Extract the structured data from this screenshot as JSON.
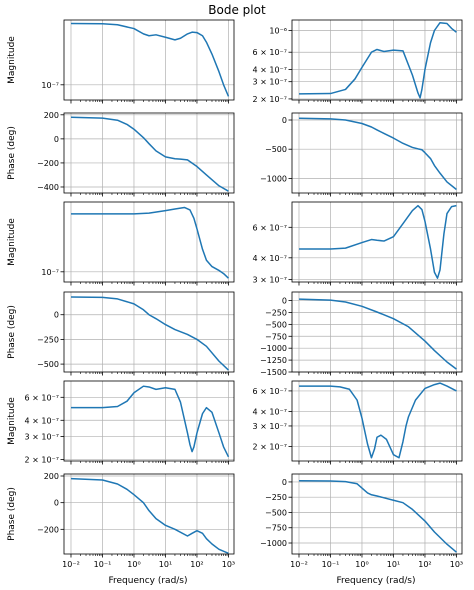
{
  "title": "Bode plot",
  "xlabel": "Frequency (rad/s)",
  "colors": {
    "line": "#1f77b4",
    "grid": "#b0b0b0",
    "axis": "#000000"
  },
  "chart_data": [
    {
      "type": "line",
      "row": 0,
      "col": 0,
      "kind": "magnitude",
      "ylabel": "Magnitude",
      "yscale": "log",
      "xscale": "log",
      "xlim": [
        0.006,
        1500
      ],
      "ylim": [
        5.8e-08,
        1.02e-06
      ],
      "yticks": [
        {
          "v": 1e-07,
          "label": "10⁻⁷"
        }
      ],
      "x": [
        0.01,
        0.1,
        0.3,
        1,
        2,
        3,
        5,
        10,
        20,
        30,
        50,
        70,
        100,
        150,
        200,
        300,
        500,
        700,
        1000
      ],
      "y": [
        9e-07,
        8.9e-07,
        8.6e-07,
        7.5e-07,
        6.2e-07,
        5.8e-07,
        6e-07,
        5.5e-07,
        5e-07,
        5.3e-07,
        6.2e-07,
        6.6e-07,
        6.5e-07,
        5.8e-07,
        4.6e-07,
        3e-07,
        1.6e-07,
        1e-07,
        6.6e-08
      ],
      "grid": true
    },
    {
      "type": "line",
      "row": 0,
      "col": 1,
      "kind": "magnitude",
      "yscale": "log",
      "xscale": "log",
      "xlim": [
        0.006,
        1500
      ],
      "ylim": [
        1.95e-07,
        1.28e-06
      ],
      "yticks": [
        {
          "v": 2e-07,
          "label": "2 × 10⁻⁷"
        },
        {
          "v": 3e-07,
          "label": "3 × 10⁻⁷"
        },
        {
          "v": 4e-07,
          "label": "4 × 10⁻⁷"
        },
        {
          "v": 6e-07,
          "label": "6 × 10⁻⁷"
        },
        {
          "v": 1e-06,
          "label": "10⁻⁶"
        }
      ],
      "x": [
        0.01,
        0.1,
        0.3,
        0.6,
        1,
        2,
        3,
        5,
        10,
        20,
        40,
        60,
        70,
        80,
        100,
        150,
        200,
        300,
        500,
        700,
        1000
      ],
      "y": [
        2.25e-07,
        2.27e-07,
        2.5e-07,
        3.2e-07,
        4.2e-07,
        6e-07,
        6.4e-07,
        6.1e-07,
        6.3e-07,
        6.2e-07,
        3.5e-07,
        2.3e-07,
        2.05e-07,
        2.5e-07,
        4e-07,
        7.5e-07,
        1e-06,
        1.2e-06,
        1.18e-06,
        1.05e-06,
        9.6e-07
      ],
      "grid": true
    },
    {
      "type": "line",
      "row": 1,
      "col": 0,
      "kind": "phase",
      "ylabel": "Phase (deg)",
      "yscale": "linear",
      "xscale": "log",
      "xlim": [
        0.006,
        1500
      ],
      "ylim": [
        -450,
        215
      ],
      "yticks": [
        {
          "v": 200,
          "label": "200"
        },
        {
          "v": 0,
          "label": "0"
        },
        {
          "v": -200,
          "label": "−200"
        },
        {
          "v": -400,
          "label": "−400"
        }
      ],
      "x": [
        0.01,
        0.1,
        0.3,
        0.6,
        1,
        2,
        3,
        5,
        10,
        20,
        30,
        50,
        100,
        200,
        500,
        1000
      ],
      "y": [
        180,
        172,
        155,
        120,
        80,
        10,
        -40,
        -100,
        -150,
        -165,
        -168,
        -175,
        -230,
        -300,
        -390,
        -435
      ],
      "grid": true
    },
    {
      "type": "line",
      "row": 1,
      "col": 1,
      "kind": "phase",
      "yscale": "linear",
      "xscale": "log",
      "xlim": [
        0.006,
        1500
      ],
      "ylim": [
        -1250,
        120
      ],
      "yticks": [
        {
          "v": 0,
          "label": "0"
        },
        {
          "v": -500,
          "label": "−500"
        },
        {
          "v": -1000,
          "label": "−1000"
        }
      ],
      "x": [
        0.01,
        0.1,
        0.3,
        1,
        2,
        3,
        5,
        10,
        20,
        40,
        60,
        80,
        100,
        150,
        200,
        300,
        500,
        1000
      ],
      "y": [
        30,
        20,
        0,
        -60,
        -120,
        -170,
        -230,
        -310,
        -400,
        -470,
        -495,
        -510,
        -560,
        -660,
        -780,
        -910,
        -1060,
        -1190
      ],
      "grid": true
    },
    {
      "type": "line",
      "row": 2,
      "col": 0,
      "kind": "magnitude",
      "ylabel": "Magnitude",
      "yscale": "log",
      "xscale": "log",
      "xlim": [
        0.006,
        1500
      ],
      "ylim": [
        7e-08,
        1.15e-06
      ],
      "yticks": [
        {
          "v": 1e-07,
          "label": "10⁻⁷"
        }
      ],
      "x": [
        0.01,
        0.1,
        1,
        3,
        10,
        20,
        40,
        60,
        80,
        100,
        150,
        200,
        300,
        500,
        700,
        1000
      ],
      "y": [
        7.6e-07,
        7.6e-07,
        7.6e-07,
        7.8e-07,
        8.5e-07,
        9e-07,
        9.5e-07,
        8.7e-07,
        6.5e-07,
        4.5e-07,
        2.2e-07,
        1.5e-07,
        1.2e-07,
        1.05e-07,
        9.4e-08,
        8e-08
      ],
      "grid": true
    },
    {
      "type": "line",
      "row": 2,
      "col": 1,
      "kind": "magnitude",
      "yscale": "log",
      "xscale": "log",
      "xlim": [
        0.006,
        1500
      ],
      "ylim": [
        2.9e-07,
        8.4e-07
      ],
      "yticks": [
        {
          "v": 3e-07,
          "label": "3 × 10⁻⁷"
        },
        {
          "v": 4e-07,
          "label": "4 × 10⁻⁷"
        },
        {
          "v": 6e-07,
          "label": "6 × 10⁻⁷"
        }
      ],
      "x": [
        0.01,
        0.1,
        0.3,
        1,
        2,
        3,
        5,
        10,
        20,
        40,
        60,
        80,
        100,
        150,
        200,
        250,
        300,
        400,
        500,
        700,
        1000
      ],
      "y": [
        4.5e-07,
        4.5e-07,
        4.55e-07,
        4.9e-07,
        5.1e-07,
        5.05e-07,
        5e-07,
        5.3e-07,
        6.3e-07,
        7.5e-07,
        8e-07,
        7.6e-07,
        6.5e-07,
        4.5e-07,
        3.3e-07,
        3.05e-07,
        3.4e-07,
        5.5e-07,
        7.2e-07,
        7.9e-07,
        8e-07
      ],
      "grid": true
    },
    {
      "type": "line",
      "row": 3,
      "col": 0,
      "kind": "phase",
      "ylabel": "Phase (deg)",
      "yscale": "linear",
      "xscale": "log",
      "xlim": [
        0.006,
        1500
      ],
      "ylim": [
        -580,
        230
      ],
      "yticks": [
        {
          "v": 0,
          "label": "0"
        },
        {
          "v": -250,
          "label": "−250"
        },
        {
          "v": -500,
          "label": "−500"
        }
      ],
      "x": [
        0.01,
        0.1,
        0.3,
        1,
        2,
        3,
        5,
        10,
        20,
        50,
        100,
        200,
        500,
        1000
      ],
      "y": [
        180,
        175,
        160,
        110,
        50,
        0,
        -40,
        -100,
        -150,
        -200,
        -250,
        -320,
        -470,
        -560
      ],
      "grid": true
    },
    {
      "type": "line",
      "row": 3,
      "col": 1,
      "kind": "phase",
      "yscale": "linear",
      "xscale": "log",
      "xlim": [
        0.006,
        1500
      ],
      "ylim": [
        -1500,
        180
      ],
      "yticks": [
        {
          "v": 0,
          "label": "0"
        },
        {
          "v": -250,
          "label": "−250"
        },
        {
          "v": -500,
          "label": "−500"
        },
        {
          "v": -750,
          "label": "−750"
        },
        {
          "v": -1000,
          "label": "−1000"
        },
        {
          "v": -1250,
          "label": "−1250"
        },
        {
          "v": -1500,
          "label": "−1500"
        }
      ],
      "x": [
        0.01,
        0.1,
        0.3,
        1,
        3,
        10,
        30,
        100,
        200,
        500,
        1000
      ],
      "y": [
        30,
        10,
        -30,
        -120,
        -240,
        -380,
        -550,
        -850,
        -1050,
        -1290,
        -1440
      ],
      "grid": true
    },
    {
      "type": "line",
      "row": 4,
      "col": 0,
      "kind": "magnitude",
      "ylabel": "Magnitude",
      "yscale": "log",
      "xscale": "log",
      "xlim": [
        0.006,
        1500
      ],
      "ylim": [
        1.95e-07,
        8e-07
      ],
      "yticks": [
        {
          "v": 2e-07,
          "label": "2 × 10⁻⁷"
        },
        {
          "v": 3e-07,
          "label": "3 × 10⁻⁷"
        },
        {
          "v": 4e-07,
          "label": "4 × 10⁻⁷"
        },
        {
          "v": 6e-07,
          "label": "6 × 10⁻⁷"
        }
      ],
      "x": [
        0.01,
        0.1,
        0.3,
        0.6,
        1,
        2,
        3,
        5,
        10,
        20,
        30,
        50,
        60,
        70,
        80,
        100,
        150,
        200,
        300,
        500,
        700,
        1000
      ],
      "y": [
        5e-07,
        5e-07,
        5.1e-07,
        5.6e-07,
        6.5e-07,
        7.3e-07,
        7.2e-07,
        6.9e-07,
        7.1e-07,
        6.9e-07,
        5.5e-07,
        3.2e-07,
        2.6e-07,
        2.3e-07,
        2.5e-07,
        3.2e-07,
        4.5e-07,
        5e-07,
        4.6e-07,
        3.2e-07,
        2.5e-07,
        2.1e-07
      ],
      "grid": true
    },
    {
      "type": "line",
      "row": 4,
      "col": 1,
      "kind": "magnitude",
      "yscale": "log",
      "xscale": "log",
      "xlim": [
        0.006,
        1500
      ],
      "ylim": [
        1.5e-07,
        7.3e-07
      ],
      "yticks": [
        {
          "v": 2e-07,
          "label": "2 × 10⁻⁷"
        },
        {
          "v": 3e-07,
          "label": "3 × 10⁻⁷"
        },
        {
          "v": 4e-07,
          "label": "4 × 10⁻⁷"
        },
        {
          "v": 6e-07,
          "label": "6 × 10⁻⁷"
        }
      ],
      "x": [
        0.01,
        0.1,
        0.2,
        0.4,
        0.7,
        1,
        1.5,
        2,
        2.5,
        3,
        4,
        6,
        10,
        15,
        20,
        25,
        30,
        50,
        100,
        200,
        300,
        500,
        1000
      ],
      "y": [
        6.6e-07,
        6.6e-07,
        6.5e-07,
        6.2e-07,
        5e-07,
        3.5e-07,
        2.1e-07,
        1.6e-07,
        1.9e-07,
        2.4e-07,
        2.5e-07,
        2.3e-07,
        1.7e-07,
        1.6e-07,
        2.2e-07,
        3e-07,
        3.6e-07,
        5e-07,
        6.3e-07,
        6.8e-07,
        7e-07,
        6.6e-07,
        6e-07
      ],
      "grid": true
    },
    {
      "type": "line",
      "row": 5,
      "col": 0,
      "kind": "phase",
      "ylabel": "Phase (deg)",
      "yscale": "linear",
      "xscale": "log",
      "xlim": [
        0.006,
        1500
      ],
      "ylim": [
        -385,
        215
      ],
      "yticks": [
        {
          "v": 200,
          "label": "200"
        },
        {
          "v": 0,
          "label": "0"
        },
        {
          "v": -200,
          "label": "−200"
        }
      ],
      "x": [
        0.01,
        0.1,
        0.3,
        0.6,
        1,
        2,
        3,
        5,
        10,
        20,
        50,
        70,
        100,
        150,
        200,
        300,
        500,
        1000
      ],
      "y": [
        180,
        170,
        140,
        100,
        60,
        0,
        -60,
        -120,
        -170,
        -200,
        -250,
        -230,
        -210,
        -230,
        -270,
        -310,
        -350,
        -380
      ],
      "grid": true
    },
    {
      "type": "line",
      "row": 5,
      "col": 1,
      "kind": "phase",
      "yscale": "linear",
      "xscale": "log",
      "xlim": [
        0.006,
        1500
      ],
      "ylim": [
        -1180,
        130
      ],
      "yticks": [
        {
          "v": 0,
          "label": "0"
        },
        {
          "v": -250,
          "label": "−250"
        },
        {
          "v": -500,
          "label": "−500"
        },
        {
          "v": -750,
          "label": "−750"
        },
        {
          "v": -1000,
          "label": "−1000"
        }
      ],
      "x": [
        0.01,
        0.1,
        0.3,
        0.7,
        1,
        1.5,
        2,
        3,
        5,
        10,
        20,
        40,
        100,
        200,
        500,
        1000
      ],
      "y": [
        20,
        15,
        5,
        -30,
        -100,
        -180,
        -210,
        -230,
        -260,
        -300,
        -340,
        -450,
        -640,
        -820,
        -1020,
        -1150
      ],
      "grid": true
    }
  ]
}
